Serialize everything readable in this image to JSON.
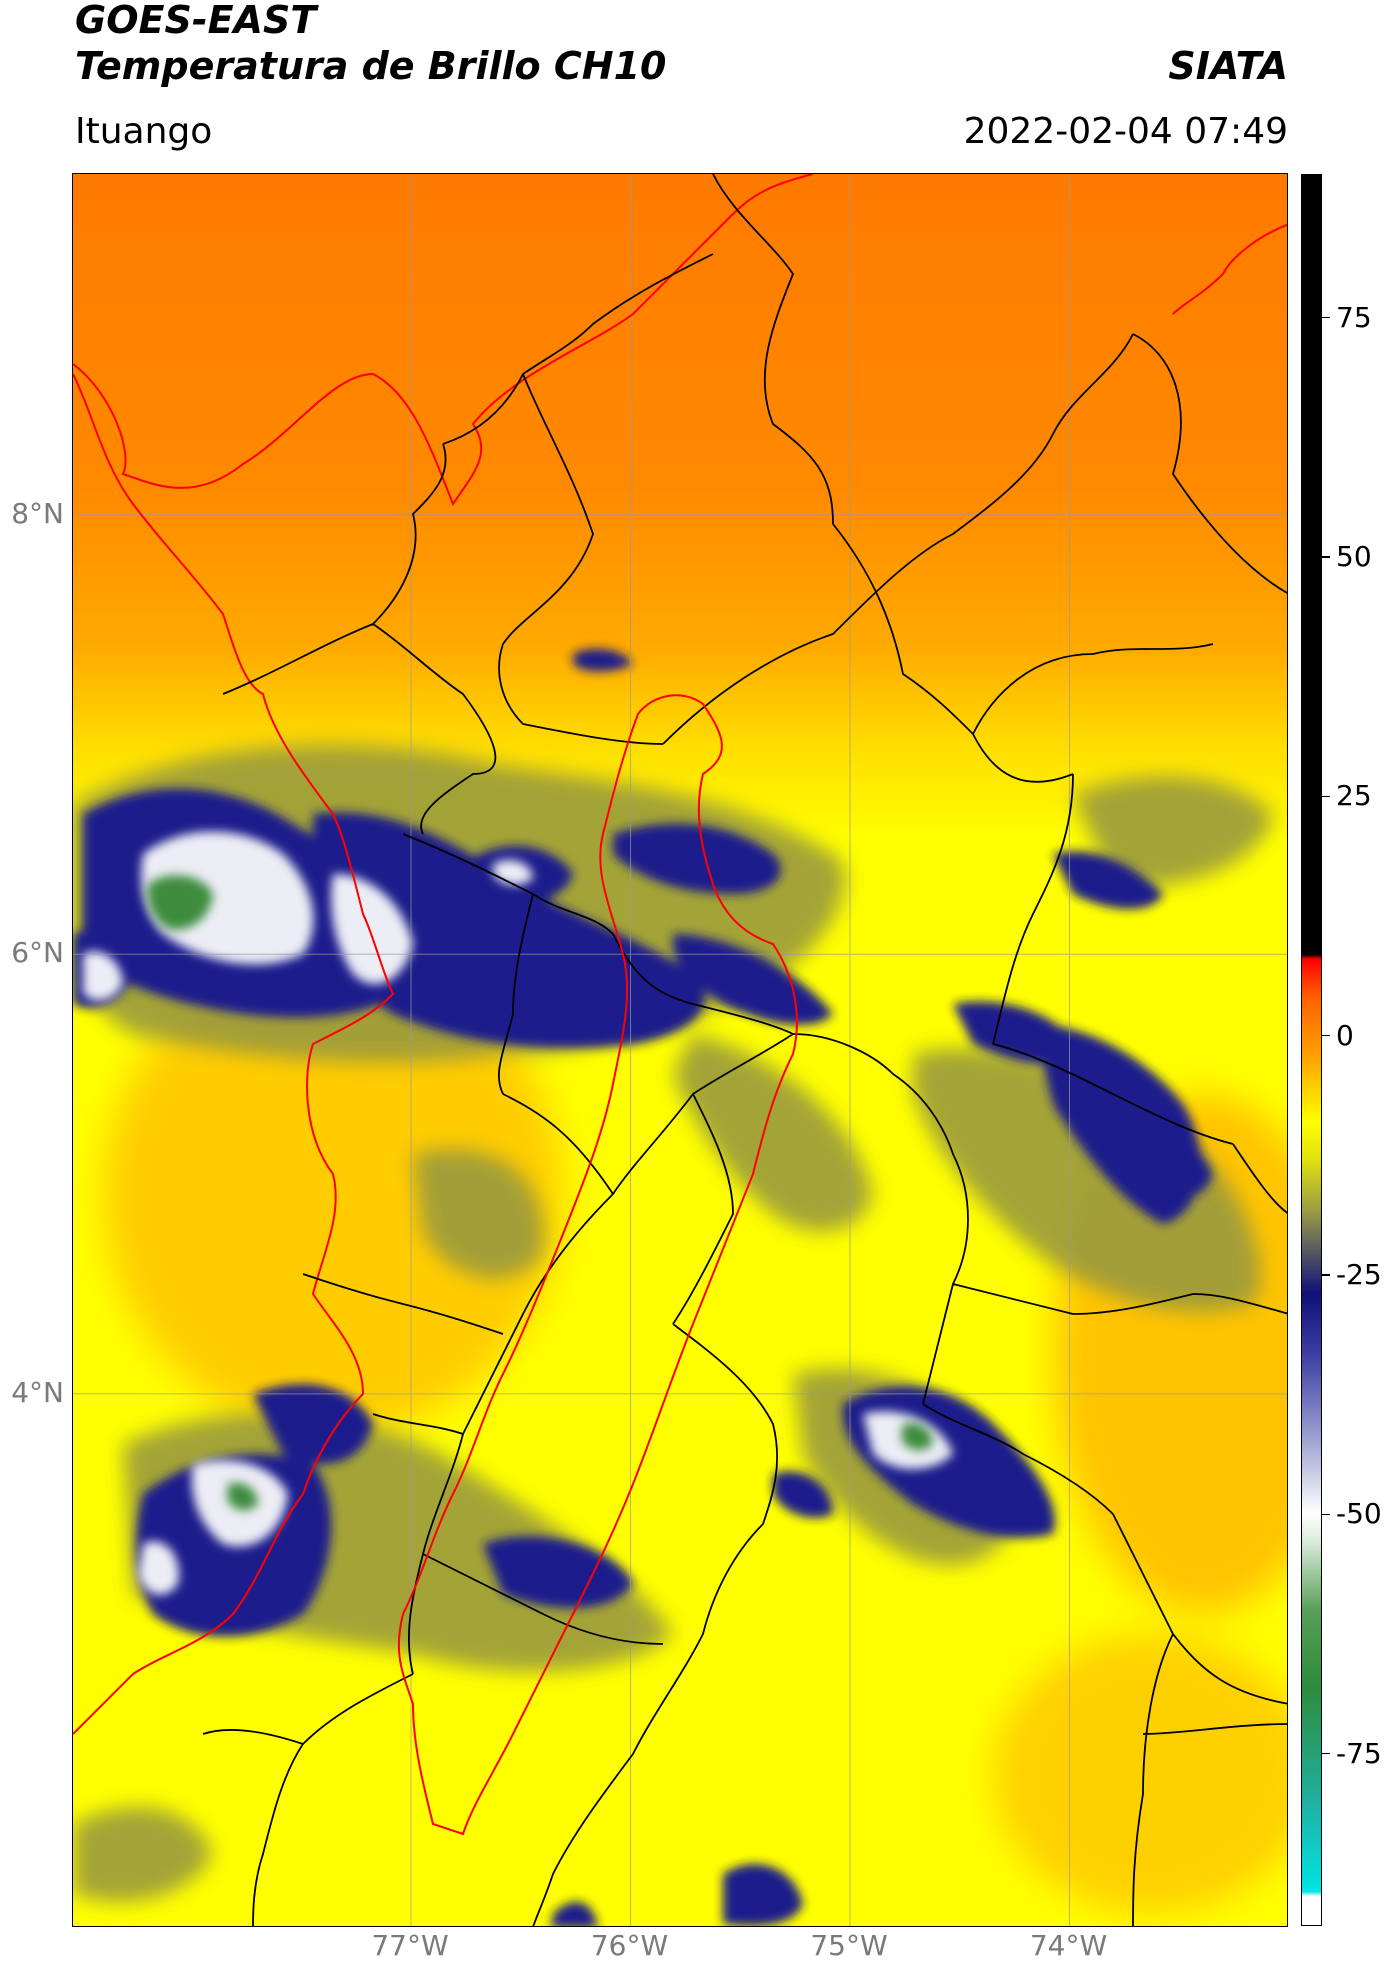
{
  "header": {
    "title_line1": "GOES-EAST",
    "title_line2": "Temperatura de Brillo CH10",
    "brand": "SIATA",
    "region": "Ituango",
    "datetime": "2022-02-04 07:49"
  },
  "map": {
    "lat_labels": [
      "8°N",
      "6°N",
      "4°N"
    ],
    "lon_labels": [
      "77°W",
      "76°W",
      "75°W",
      "74°W"
    ],
    "lat_values": [
      8,
      6,
      4
    ],
    "lon_values": [
      -77,
      -76,
      -75,
      -74
    ],
    "extent": {
      "lon_min": -78.54,
      "lon_max": -73.0,
      "lat_min": 1.57,
      "lat_max": 9.55
    },
    "colors": {
      "warm_orange": "#ff8c00",
      "yellow": "#ffff00",
      "olive": "#8a8a3a",
      "navy": "#1a1a8c",
      "white": "#f2f2f2",
      "green": "#3c8c3c",
      "boundary": "#000000",
      "ituango_outline": "#ff0000",
      "coastline": "#ff0000"
    }
  },
  "colorbar": {
    "ticks": [
      "75",
      "50",
      "25",
      "0",
      "-25",
      "-50",
      "-75"
    ],
    "tick_values": [
      75,
      50,
      25,
      0,
      -25,
      -50,
      -75
    ],
    "vmin": -93,
    "vmax": 90,
    "stops": [
      {
        "v": -93,
        "c": "#ffffff"
      },
      {
        "v": -90,
        "c": "#ffffff"
      },
      {
        "v": -89.5,
        "c": "#00e5e5"
      },
      {
        "v": -80,
        "c": "#20b0a0"
      },
      {
        "v": -68,
        "c": "#2e8b3c"
      },
      {
        "v": -60,
        "c": "#5aa05a"
      },
      {
        "v": -53,
        "c": "#d8ead8"
      },
      {
        "v": -50,
        "c": "#ffffff"
      },
      {
        "v": -42,
        "c": "#9aa0d0"
      },
      {
        "v": -33,
        "c": "#3a3aa0"
      },
      {
        "v": -27,
        "c": "#10107a"
      },
      {
        "v": -22,
        "c": "#606060"
      },
      {
        "v": -18,
        "c": "#a0a040"
      },
      {
        "v": -13,
        "c": "#e0e010"
      },
      {
        "v": -9,
        "c": "#ffff00"
      },
      {
        "v": -2,
        "c": "#ffa000"
      },
      {
        "v": 4,
        "c": "#ff6000"
      },
      {
        "v": 8,
        "c": "#ff0000"
      },
      {
        "v": 8.5,
        "c": "#000000"
      },
      {
        "v": 90,
        "c": "#000000"
      }
    ]
  }
}
